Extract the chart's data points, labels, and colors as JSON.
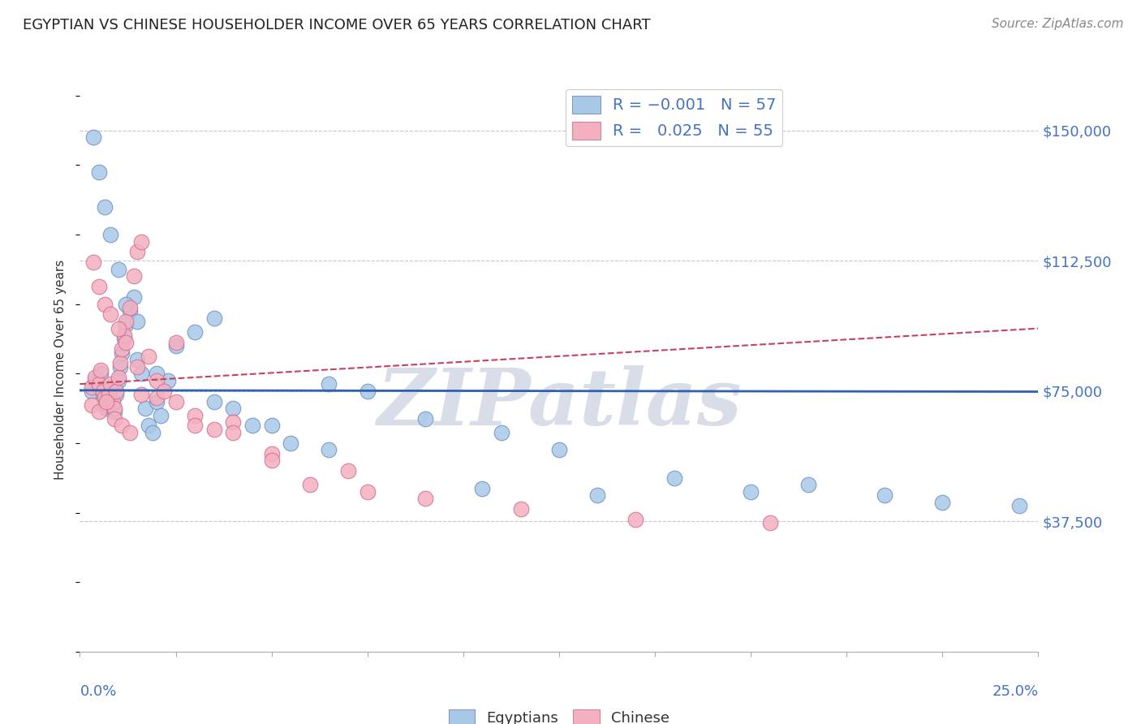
{
  "title": "EGYPTIAN VS CHINESE HOUSEHOLDER INCOME OVER 65 YEARS CORRELATION CHART",
  "source": "Source: ZipAtlas.com",
  "ylabel": "Householder Income Over 65 years",
  "ytick_values": [
    37500,
    75000,
    112500,
    150000
  ],
  "ytick_labels": [
    "$37,500",
    "$75,000",
    "$112,500",
    "$150,000"
  ],
  "xlim": [
    0.0,
    25.0
  ],
  "ylim": [
    0,
    162500
  ],
  "legend_label1": "Egyptians",
  "legend_label2": "Chinese",
  "blue_color": "#a8c8e8",
  "pink_color": "#f4b0c0",
  "blue_edge_color": "#7090c0",
  "pink_edge_color": "#d07090",
  "trend_blue_color": "#3060b0",
  "trend_pink_color": "#c84060",
  "watermark": "ZIPatlas",
  "blue_trend_y0": 75200,
  "blue_trend_y1": 74800,
  "pink_trend_y0": 77000,
  "pink_trend_y1": 93000,
  "blue_x": [
    0.3,
    0.4,
    0.5,
    0.55,
    0.6,
    0.65,
    0.7,
    0.75,
    0.8,
    0.85,
    0.9,
    0.95,
    1.0,
    1.05,
    1.1,
    1.15,
    1.2,
    1.3,
    1.4,
    1.5,
    1.6,
    1.7,
    1.8,
    1.9,
    2.0,
    2.1,
    2.3,
    2.5,
    3.0,
    3.5,
    4.0,
    4.5,
    5.5,
    6.5,
    7.5,
    9.0,
    11.0,
    12.5,
    15.5,
    19.0,
    0.35,
    0.5,
    0.65,
    0.8,
    1.0,
    1.2,
    1.5,
    2.0,
    3.5,
    5.0,
    6.5,
    10.5,
    13.5,
    17.5,
    21.0,
    22.5,
    24.5
  ],
  "blue_y": [
    75000,
    78000,
    76000,
    80000,
    74000,
    72000,
    70000,
    73000,
    76000,
    71000,
    69000,
    74000,
    78000,
    82000,
    86000,
    90000,
    94000,
    98000,
    102000,
    84000,
    80000,
    70000,
    65000,
    63000,
    72000,
    68000,
    78000,
    88000,
    92000,
    96000,
    70000,
    65000,
    60000,
    77000,
    75000,
    67000,
    63000,
    58000,
    50000,
    48000,
    148000,
    138000,
    128000,
    120000,
    110000,
    100000,
    95000,
    80000,
    72000,
    65000,
    58000,
    47000,
    45000,
    46000,
    45000,
    43000,
    42000
  ],
  "pink_x": [
    0.3,
    0.4,
    0.5,
    0.55,
    0.6,
    0.65,
    0.7,
    0.75,
    0.8,
    0.85,
    0.9,
    0.95,
    1.0,
    1.05,
    1.1,
    1.15,
    1.2,
    1.3,
    1.4,
    1.5,
    1.6,
    1.8,
    2.0,
    2.5,
    3.0,
    3.5,
    4.0,
    5.0,
    6.0,
    7.5,
    0.35,
    0.5,
    0.65,
    0.8,
    1.0,
    1.2,
    1.5,
    2.0,
    2.5,
    3.0,
    4.0,
    5.0,
    7.0,
    9.0,
    11.5,
    14.5,
    18.0,
    0.3,
    0.5,
    0.7,
    0.9,
    1.1,
    1.3,
    1.6,
    2.2
  ],
  "pink_y": [
    76000,
    79000,
    77000,
    81000,
    75000,
    73000,
    71000,
    74000,
    77000,
    72000,
    70000,
    75000,
    79000,
    83000,
    87000,
    91000,
    95000,
    99000,
    108000,
    115000,
    118000,
    85000,
    73000,
    89000,
    68000,
    64000,
    66000,
    57000,
    48000,
    46000,
    112000,
    105000,
    100000,
    97000,
    93000,
    89000,
    82000,
    78000,
    72000,
    65000,
    63000,
    55000,
    52000,
    44000,
    41000,
    38000,
    37000,
    71000,
    69000,
    72000,
    67000,
    65000,
    63000,
    74000,
    75000
  ]
}
